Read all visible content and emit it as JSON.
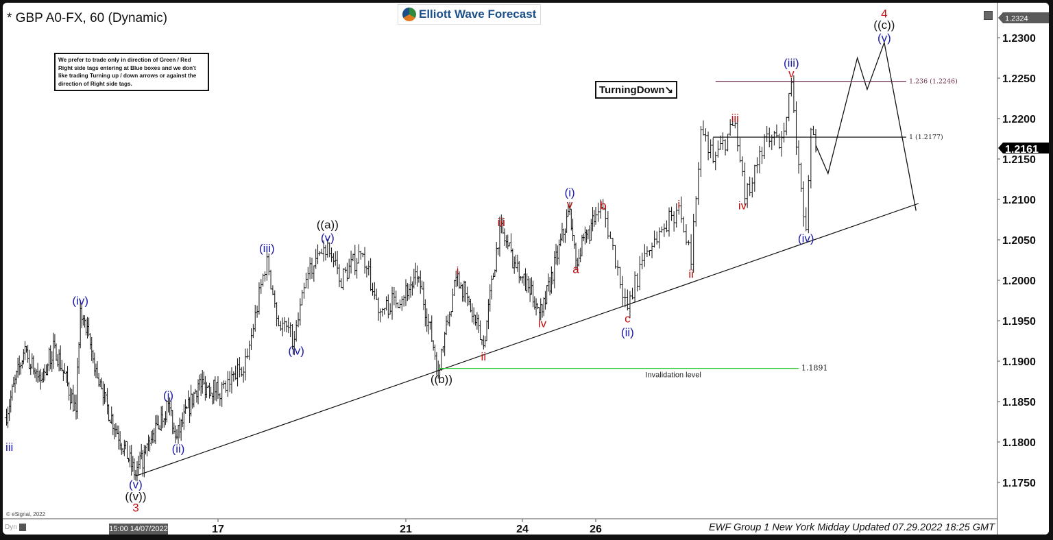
{
  "header": {
    "title": "* GBP A0-FX, 60 (Dynamic)",
    "logo_text": "Elliott Wave Forecast"
  },
  "note": "We prefer to trade only in direction of Green / Red Right side tags entering at Blue boxes and we don't like trading Turning up / down arrows or against the direction of Right side tags.",
  "turning_tag": "TurningDown↘",
  "footer": {
    "text": "EWF Group 1 New York Midday Updated 07.29.2022 18:25 GMT",
    "copyright": "© eSignal, 2022",
    "dyn": "Dyn",
    "cursor_date": "15:00 14/07/2022"
  },
  "colors": {
    "blue": "#1a1aa8",
    "red": "#c01010",
    "black": "#111111",
    "green": "#33cc33",
    "fib": "#6a2a4a"
  },
  "chart_data": {
    "type": "ohlc",
    "symbol": "GBP A0-FX",
    "interval": "60",
    "ylim": [
      1.1705,
      1.2335
    ],
    "y_ticks": [
      "1.1750",
      "1.1800",
      "1.1850",
      "1.1900",
      "1.1950",
      "1.2000",
      "1.2050",
      "1.2100",
      "1.2150",
      "1.2200",
      "1.2250",
      "1.2300"
    ],
    "x_ticks": [
      {
        "label": "17",
        "date": "2022-07-17T00:00"
      },
      {
        "label": "21",
        "date": "2022-07-21T00:00"
      },
      {
        "label": "24",
        "date": "2022-07-24T00:00"
      },
      {
        "label": "26",
        "date": "2022-07-26T00:00"
      }
    ],
    "last_price": "1.2161",
    "high_marker": "1.2324",
    "price_swings": [
      [
        "2022-07-10T18:00",
        1.183
      ],
      [
        "2022-07-11T07:00",
        1.191
      ],
      [
        "2022-07-11T19:00",
        1.1876
      ],
      [
        "2022-07-12T05:00",
        1.1919
      ],
      [
        "2022-07-12T20:00",
        1.1838
      ],
      [
        "2022-07-12T23:00",
        1.1965
      ],
      [
        "2022-07-13T15:00",
        1.1855
      ],
      [
        "2022-07-14T14:00",
        1.1759
      ],
      [
        "2022-07-15T13:00",
        1.1848
      ],
      [
        "2022-07-15T19:00",
        1.1806
      ],
      [
        "2022-07-16T10:00",
        1.1872
      ],
      [
        "2022-07-17T04:00",
        1.1864
      ],
      [
        "2022-07-17T15:00",
        1.1906
      ],
      [
        "2022-07-18T01:00",
        1.2029
      ],
      [
        "2022-07-18T06:00",
        1.1953
      ],
      [
        "2022-07-18T15:00",
        1.1927
      ],
      [
        "2022-07-18T22:00",
        1.2008
      ],
      [
        "2022-07-19T08:00",
        1.2046
      ],
      [
        "2022-07-19T14:00",
        1.1999
      ],
      [
        "2022-07-20T01:00",
        1.2033
      ],
      [
        "2022-07-20T11:00",
        1.1961
      ],
      [
        "2022-07-21T08:00",
        1.2003
      ],
      [
        "2022-07-21T20:00",
        1.1891
      ],
      [
        "2022-07-22T08:00",
        1.2008
      ],
      [
        "2022-07-23T00:00",
        1.1919
      ],
      [
        "2022-07-23T10:00",
        1.2067
      ],
      [
        "2022-07-23T23:00",
        1.2003
      ],
      [
        "2022-07-24T13:00",
        1.1961
      ],
      [
        "2022-07-25T07:00",
        1.2088
      ],
      [
        "2022-07-25T11:00",
        1.2025
      ],
      [
        "2022-07-26T03:00",
        1.2088
      ],
      [
        "2022-07-26T13:00",
        1.1965
      ],
      [
        "2022-07-26T20:00",
        1.2033
      ],
      [
        "2022-07-27T10:00",
        1.2092
      ],
      [
        "2022-07-27T15:00",
        1.202
      ],
      [
        "2022-07-27T19:00",
        1.2186
      ],
      [
        "2022-07-28T00:00",
        1.2147
      ],
      [
        "2022-07-28T09:00",
        1.2194
      ],
      [
        "2022-07-28T13:00",
        1.2101
      ],
      [
        "2022-07-28T22:00",
        1.2181
      ],
      [
        "2022-07-29T03:00",
        1.2164
      ],
      [
        "2022-07-29T08:00",
        1.2245
      ],
      [
        "2022-07-29T11:00",
        1.2143
      ],
      [
        "2022-07-29T14:00",
        1.2063
      ],
      [
        "2022-07-29T16:00",
        1.2186
      ],
      [
        "2022-07-29T18:00",
        1.2161
      ]
    ],
    "projection": [
      [
        "2022-07-29T18:00",
        1.2167
      ],
      [
        "2022-07-29T23:00",
        1.2132
      ],
      [
        "2022-07-30T11:00",
        1.2275
      ],
      [
        "2022-07-30T15:00",
        1.2236
      ],
      [
        "2022-07-30T22:00",
        1.2294
      ],
      [
        "2022-07-31T11:00",
        1.2086
      ]
    ],
    "trendline": [
      [
        "2022-07-14T14:00",
        1.1758
      ],
      [
        "2022-07-31T12:00",
        1.2095
      ]
    ],
    "levels": [
      {
        "label": "1.236 (1.2246)",
        "price": 1.2246,
        "from": "2022-07-28T01:00",
        "to": "2022-07-31T07:00",
        "color": "fib"
      },
      {
        "label": "1 (1.2177)",
        "price": 1.2177,
        "from": "2022-07-28T00:00",
        "to": "2022-07-31T07:00",
        "color": "black"
      },
      {
        "label": "1.1891",
        "sublabel": "Invalidation level",
        "price": 1.1891,
        "from": "2022-07-21T20:00",
        "to": "2022-07-29T11:00",
        "color": "green"
      }
    ],
    "wave_labels": [
      {
        "t": "iii",
        "d": "2022-07-10T21:00",
        "p": 1.1794,
        "c": "blue"
      },
      {
        "t": "(iv)",
        "d": "2022-07-12T23:00",
        "p": 1.1975,
        "c": "blue"
      },
      {
        "t": "(v)",
        "d": "2022-07-14T14:00",
        "p": 1.1748,
        "c": "blue"
      },
      {
        "t": "((v))",
        "d": "2022-07-14T14:00",
        "p": 1.1733,
        "c": "black"
      },
      {
        "t": "3",
        "d": "2022-07-14T14:00",
        "p": 1.1719,
        "c": "red"
      },
      {
        "t": "(i)",
        "d": "2022-07-15T13:00",
        "p": 1.1858,
        "c": "blue"
      },
      {
        "t": "(ii)",
        "d": "2022-07-15T20:00",
        "p": 1.1792,
        "c": "blue"
      },
      {
        "t": "(iii)",
        "d": "2022-07-18T01:00",
        "p": 1.204,
        "c": "blue"
      },
      {
        "t": "(iv)",
        "d": "2022-07-18T16:00",
        "p": 1.1913,
        "c": "blue"
      },
      {
        "t": "((a))",
        "d": "2022-07-19T08:00",
        "p": 1.2069,
        "c": "black"
      },
      {
        "t": "(v)",
        "d": "2022-07-19T08:00",
        "p": 1.2053,
        "c": "blue"
      },
      {
        "t": "((b))",
        "d": "2022-07-21T22:00",
        "p": 1.1878,
        "c": "black"
      },
      {
        "t": "i",
        "d": "2022-07-22T08:00",
        "p": 1.2012,
        "c": "red"
      },
      {
        "t": "ii",
        "d": "2022-07-23T00:00",
        "p": 1.1906,
        "c": "red"
      },
      {
        "t": "iii",
        "d": "2022-07-23T11:00",
        "p": 1.2072,
        "c": "red"
      },
      {
        "t": "iv",
        "d": "2022-07-24T13:00",
        "p": 1.1947,
        "c": "red"
      },
      {
        "t": "(i)",
        "d": "2022-07-25T07:00",
        "p": 1.2109,
        "c": "blue"
      },
      {
        "t": "v",
        "d": "2022-07-25T07:00",
        "p": 1.2094,
        "c": "red"
      },
      {
        "t": "a",
        "d": "2022-07-25T11:00",
        "p": 1.2014,
        "c": "red"
      },
      {
        "t": "b",
        "d": "2022-07-26T03:00",
        "p": 1.2093,
        "c": "red"
      },
      {
        "t": "c",
        "d": "2022-07-26T13:00",
        "p": 1.1953,
        "c": "red"
      },
      {
        "t": "(ii)",
        "d": "2022-07-26T13:00",
        "p": 1.1936,
        "c": "blue"
      },
      {
        "t": "i",
        "d": "2022-07-27T10:00",
        "p": 1.2094,
        "c": "red"
      },
      {
        "t": "ii",
        "d": "2022-07-27T15:00",
        "p": 1.2008,
        "c": "red"
      },
      {
        "t": "iii",
        "d": "2022-07-28T09:00",
        "p": 1.2201,
        "c": "red"
      },
      {
        "t": "iv",
        "d": "2022-07-28T12:00",
        "p": 1.2093,
        "c": "red"
      },
      {
        "t": "(iii)",
        "d": "2022-07-29T08:00",
        "p": 1.2269,
        "c": "blue"
      },
      {
        "t": "v",
        "d": "2022-07-29T08:00",
        "p": 1.2256,
        "c": "red"
      },
      {
        "t": "(iv)",
        "d": "2022-07-29T14:00",
        "p": 1.2052,
        "c": "blue"
      },
      {
        "t": "4",
        "d": "2022-07-30T22:00",
        "p": 1.233,
        "c": "red"
      },
      {
        "t": "((c))",
        "d": "2022-07-30T22:00",
        "p": 1.2316,
        "c": "black"
      },
      {
        "t": "(v)",
        "d": "2022-07-30T22:00",
        "p": 1.23,
        "c": "blue"
      }
    ]
  }
}
